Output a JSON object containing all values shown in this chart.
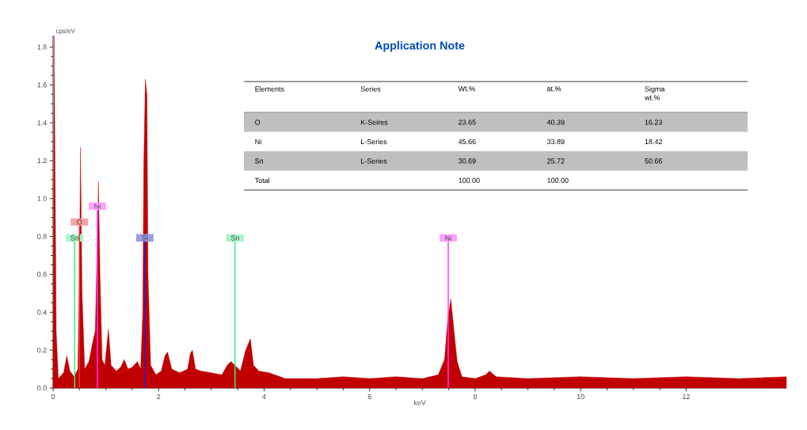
{
  "chart_data": [
    {
      "type": "area",
      "title": "Application Note",
      "xlabel": "keV",
      "ylabel": "cps/eV",
      "color": "#c00000",
      "x": [
        0,
        0.02,
        0.06,
        0.1,
        0.2,
        0.26,
        0.32,
        0.4,
        0.47,
        0.5,
        0.52,
        0.55,
        0.6,
        0.68,
        0.75,
        0.8,
        0.84,
        0.86,
        0.89,
        0.93,
        0.98,
        1.05,
        1.1,
        1.2,
        1.28,
        1.35,
        1.42,
        1.5,
        1.6,
        1.66,
        1.7,
        1.72,
        1.75,
        1.78,
        1.8,
        1.85,
        1.95,
        2.05,
        2.12,
        2.17,
        2.25,
        2.4,
        2.55,
        2.6,
        2.64,
        2.7,
        2.8,
        3.0,
        3.2,
        3.3,
        3.37,
        3.45,
        3.55,
        3.65,
        3.74,
        3.8,
        3.9,
        4.1,
        4.4,
        5,
        5.5,
        6,
        6.5,
        7,
        7.3,
        7.42,
        7.48,
        7.54,
        7.6,
        7.66,
        7.75,
        8,
        8.2,
        8.27,
        8.4,
        9,
        10,
        11,
        12,
        13,
        13.9
      ],
      "values": [
        0,
        1.86,
        0.3,
        0.05,
        0.08,
        0.17,
        0.09,
        0.06,
        0.1,
        0.6,
        1.27,
        0.5,
        0.1,
        0.14,
        0.24,
        0.3,
        0.8,
        1.09,
        0.6,
        0.15,
        0.12,
        0.31,
        0.12,
        0.09,
        0.11,
        0.15,
        0.1,
        0.11,
        0.14,
        0.1,
        0.4,
        1.2,
        1.63,
        1.55,
        0.6,
        0.12,
        0.07,
        0.09,
        0.17,
        0.19,
        0.1,
        0.08,
        0.1,
        0.18,
        0.2,
        0.1,
        0.09,
        0.08,
        0.07,
        0.12,
        0.14,
        0.12,
        0.09,
        0.2,
        0.26,
        0.12,
        0.09,
        0.08,
        0.05,
        0.05,
        0.06,
        0.05,
        0.06,
        0.05,
        0.07,
        0.15,
        0.36,
        0.47,
        0.3,
        0.14,
        0.06,
        0.05,
        0.07,
        0.09,
        0.06,
        0.05,
        0.06,
        0.05,
        0.06,
        0.05,
        0.06
      ],
      "xlim": [
        0,
        13.9
      ],
      "ylim": [
        0,
        1.86
      ],
      "xticks": [
        0,
        2,
        4,
        6,
        8,
        10,
        12
      ],
      "yticks": [
        {
          "value": 0,
          "label": "0.0"
        },
        0.2,
        0.4,
        0.6,
        0.8,
        {
          "value": 1,
          "label": "1.0"
        },
        1.2,
        1.4,
        1.6,
        1.8
      ],
      "ref_lines": [
        {
          "axis": "x",
          "value": 0.41,
          "label": "Sn",
          "color": "#33ee88"
        },
        {
          "axis": "x",
          "value": 0.5,
          "label": "O",
          "color": "#ee3333"
        },
        {
          "axis": "x",
          "value": 0.84,
          "label": "Ni",
          "color": "#ff33ff"
        },
        {
          "axis": "x",
          "value": 1.74,
          "label": "Si",
          "color": "#2222cc"
        },
        {
          "axis": "x",
          "value": 3.45,
          "label": "Sn",
          "color": "#33ee88"
        },
        {
          "axis": "x",
          "value": 7.49,
          "label": "Ni",
          "color": "#ff33ff"
        }
      ],
      "grid": false
    },
    {
      "type": "other",
      "categories": [
        "Elements",
        "Series",
        "Wt.%",
        "at.%",
        "Sigma wt.%"
      ],
      "y_categories": [
        "O",
        "Ni",
        "Sn",
        "Total"
      ],
      "cell_labels": [
        [
          "K-Seires",
          "23.65",
          "40.39",
          "16.23"
        ],
        [
          "L-Series",
          "45.66",
          "33.89",
          "18.42"
        ],
        [
          "L-Series",
          "30.69",
          "25.72",
          "50.66"
        ],
        [
          null,
          "100.00",
          "100.00",
          null
        ]
      ]
    }
  ]
}
